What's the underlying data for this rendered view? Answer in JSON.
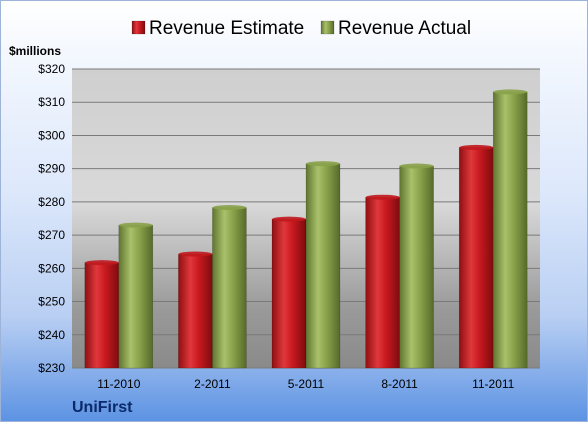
{
  "brand": "UniFirst",
  "chart_data": {
    "type": "bar",
    "title": "",
    "xlabel": "",
    "ylabel": "$millions",
    "ylim": [
      230,
      320
    ],
    "yticks": [
      "$230",
      "$240",
      "$250",
      "$260",
      "$270",
      "$280",
      "$290",
      "$300",
      "$310",
      "$320"
    ],
    "categories": [
      "11-2010",
      "2-2011",
      "5-2011",
      "8-2011",
      "11-2011"
    ],
    "legend_position": "top",
    "grid": true,
    "series": [
      {
        "name": "Revenue Estimate",
        "color": "#c0181e",
        "values": [
          261.7,
          264.3,
          274.8,
          281.4,
          296.4
        ]
      },
      {
        "name": "Revenue Actual",
        "color": "#88a24a",
        "values": [
          273.0,
          278.3,
          291.5,
          290.8,
          313.1
        ]
      }
    ]
  }
}
